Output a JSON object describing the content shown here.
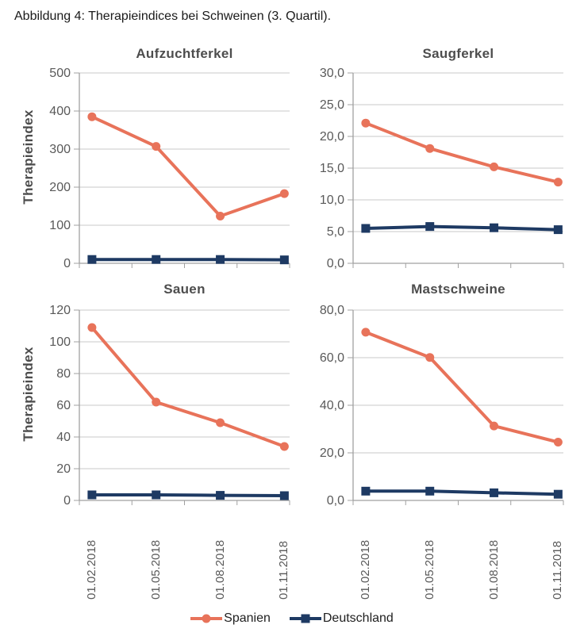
{
  "caption": "Abbildung 4: Therapieindices bei Schweinen (3. Quartil).",
  "colors": {
    "spanien": "#E8735A",
    "deutschland": "#1E3A63",
    "grid": "#C8C8C8",
    "axis": "#A0A0A0",
    "tick_label": "#595959",
    "title": "#4D4D4D"
  },
  "chart_data": [
    {
      "type": "line",
      "title": "Aufzuchtferkel",
      "ylabel": "Therapieindex",
      "xlabel": "",
      "categories": [
        "01.02.2018",
        "01.05.2018",
        "01.08.2018",
        "01.11.2018"
      ],
      "ylim": [
        0,
        500
      ],
      "ytick_step": 100,
      "decimal_places": 0,
      "grid": true,
      "series": [
        {
          "name": "Spanien",
          "values": [
            385,
            307,
            124,
            183
          ]
        },
        {
          "name": "Deutschland",
          "values": [
            10,
            10,
            10,
            9
          ]
        }
      ]
    },
    {
      "type": "line",
      "title": "Saugferkel",
      "ylabel": "",
      "xlabel": "",
      "categories": [
        "01.02.2018",
        "01.05.2018",
        "01.08.2018",
        "01.11.2018"
      ],
      "ylim": [
        0,
        30
      ],
      "ytick_step": 5,
      "decimal_places": 1,
      "grid": true,
      "series": [
        {
          "name": "Spanien",
          "values": [
            22.1,
            18.1,
            15.2,
            12.8
          ]
        },
        {
          "name": "Deutschland",
          "values": [
            5.5,
            5.8,
            5.6,
            5.3
          ]
        }
      ]
    },
    {
      "type": "line",
      "title": "Sauen",
      "ylabel": "Therapieindex",
      "xlabel": "",
      "categories": [
        "01.02.2018",
        "01.05.2018",
        "01.08.2018",
        "01.11.2018"
      ],
      "ylim": [
        0,
        120
      ],
      "ytick_step": 20,
      "decimal_places": 0,
      "grid": true,
      "series": [
        {
          "name": "Spanien",
          "values": [
            109,
            62,
            49,
            34
          ]
        },
        {
          "name": "Deutschland",
          "values": [
            3.5,
            3.5,
            3.2,
            3.0
          ]
        }
      ]
    },
    {
      "type": "line",
      "title": "Mastschweine",
      "ylabel": "",
      "xlabel": "",
      "categories": [
        "01.02.2018",
        "01.05.2018",
        "01.08.2018",
        "01.11.2018"
      ],
      "ylim": [
        0,
        80
      ],
      "ytick_step": 20,
      "decimal_places": 1,
      "grid": true,
      "series": [
        {
          "name": "Spanien",
          "values": [
            70.7,
            60.1,
            31.3,
            24.5
          ]
        },
        {
          "name": "Deutschland",
          "values": [
            3.9,
            3.9,
            3.2,
            2.6
          ]
        }
      ]
    }
  ],
  "legend": {
    "position": "bottom",
    "entries": [
      {
        "label": "Spanien",
        "marker": "circle",
        "color": "#E8735A"
      },
      {
        "label": "Deutschland",
        "marker": "square",
        "color": "#1E3A63"
      }
    ]
  }
}
